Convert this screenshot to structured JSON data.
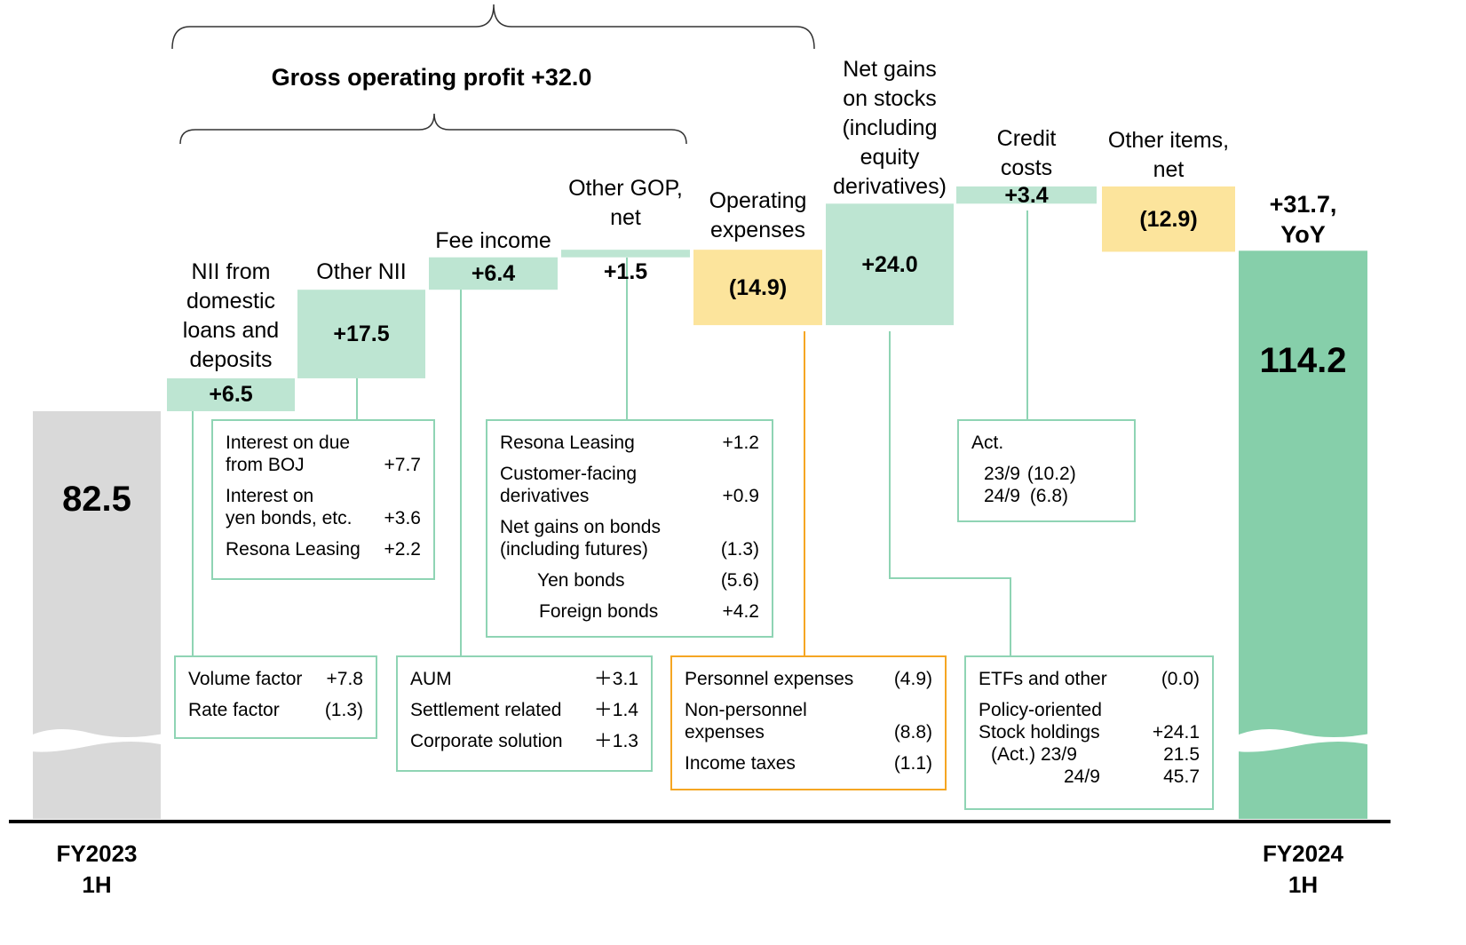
{
  "chart_data": {
    "type": "waterfall",
    "categories": [
      "FY2023\n1H",
      "NII from\ndomestic\nloans and\ndeposits",
      "Other NII",
      "Fee income",
      "Other GOP,\nnet",
      "Operating\nexpenses",
      "Net gains\non stocks\n(including\nequity\nderivatives)",
      "Credit\ncosts",
      "Other items,\nnet",
      "FY2024\n1H"
    ],
    "values": [
      82.5,
      6.5,
      17.5,
      6.4,
      1.5,
      -14.9,
      24.0,
      3.4,
      -12.9,
      114.2
    ],
    "value_labels": [
      "82.5",
      "+6.5",
      "+17.5",
      "+6.4",
      "+1.5",
      "(14.9)",
      "+24.0",
      "+3.4",
      "(12.9)",
      "114.2"
    ],
    "colors": [
      "#d9d9d9",
      "#bde5d2",
      "#bde5d2",
      "#bde5d2",
      "#bde5d2",
      "#fce49c",
      "#bde5d2",
      "#bde5d2",
      "#fce49c",
      "#86cfaa"
    ],
    "annotations": [
      "Gross operating profit +32.0",
      "+31.7,\nYoY"
    ],
    "detail_boxes": [
      {
        "rows": [
          {
            "label": "Interest on due\nfrom BOJ",
            "value": "+7.7"
          },
          {
            "label": "Interest on\nyen bonds, etc.",
            "value": "+3.6"
          },
          {
            "label": "Resona Leasing",
            "value": "+2.2"
          }
        ]
      },
      {
        "rows": [
          {
            "label": "Resona Leasing",
            "value": "+1.2"
          },
          {
            "label": "Customer-facing derivatives\n",
            "value": "+0.9"
          },
          {
            "label": "Net gains on bonds\n(including futures)",
            "value": "(1.3)"
          },
          {
            "label": "Yen bonds",
            "value": "(5.6)"
          },
          {
            "label": "Foreign bonds",
            "value": "+4.2"
          }
        ]
      },
      {
        "rows": [
          {
            "label": "Act."
          },
          {
            "label": "23/9",
            "value": "(10.2)"
          },
          {
            "label": "24/9",
            "value": "(6.8)"
          }
        ]
      },
      {
        "rows": [
          {
            "label": "Volume factor",
            "value": "+7.8"
          },
          {
            "label": "Rate factor",
            "value": "(1.3)"
          }
        ]
      },
      {
        "rows": [
          {
            "label": "AUM",
            "value": "＋3.1"
          },
          {
            "label": "Settlement related",
            "value": "＋1.4"
          },
          {
            "label": "Corporate solution",
            "value": "＋1.3"
          }
        ]
      },
      {
        "rows": [
          {
            "label": "Personnel expenses",
            "value": "(4.9)"
          },
          {
            "label": "Non-personnel\nexpenses",
            "value": "(8.8)"
          },
          {
            "label": "Income taxes",
            "value": "(1.1)"
          }
        ]
      },
      {
        "rows": [
          {
            "label": "ETFs and other",
            "value": "(0.0)"
          },
          {
            "label": "Policy-oriented\nStock holdings",
            "value": "+24.1"
          },
          {
            "label": "(Act.) 23/9",
            "value": "21.5"
          },
          {
            "label": "24/9",
            "value": "45.7"
          }
        ]
      }
    ]
  }
}
